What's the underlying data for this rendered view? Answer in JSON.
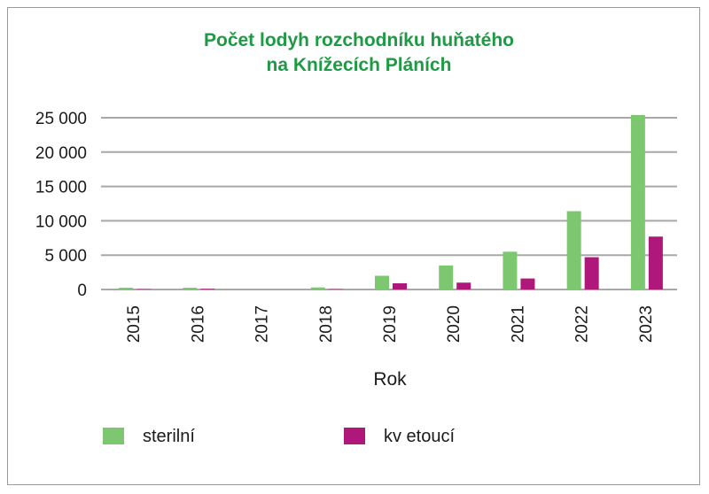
{
  "chart_data": {
    "type": "bar",
    "title_lines": [
      "Počet lodyh rozchodníku huňatého",
      "na Knížecích Pláních"
    ],
    "xlabel": "Rok",
    "ylabel": "",
    "categories": [
      "2015",
      "2016",
      "2017",
      "2018",
      "2019",
      "2020",
      "2021",
      "2022",
      "2023"
    ],
    "series": [
      {
        "name": "sterilní",
        "color": "#7dc771",
        "values": [
          250,
          250,
          0,
          300,
          2000,
          3500,
          5500,
          11400,
          25400
        ]
      },
      {
        "name": "kv etoucí",
        "color": "#b0177a",
        "values": [
          50,
          100,
          0,
          50,
          900,
          1000,
          1600,
          4700,
          7700
        ]
      }
    ],
    "ylim": [
      0,
      25000
    ],
    "yticks": [
      0,
      5000,
      10000,
      15000,
      20000,
      25000
    ],
    "ytick_labels": [
      "0",
      "5 000",
      "10 000",
      "15 000",
      "20 000",
      "25 000"
    ],
    "grid": true,
    "legend_position": "bottom",
    "title_color": "#1f9a44"
  }
}
